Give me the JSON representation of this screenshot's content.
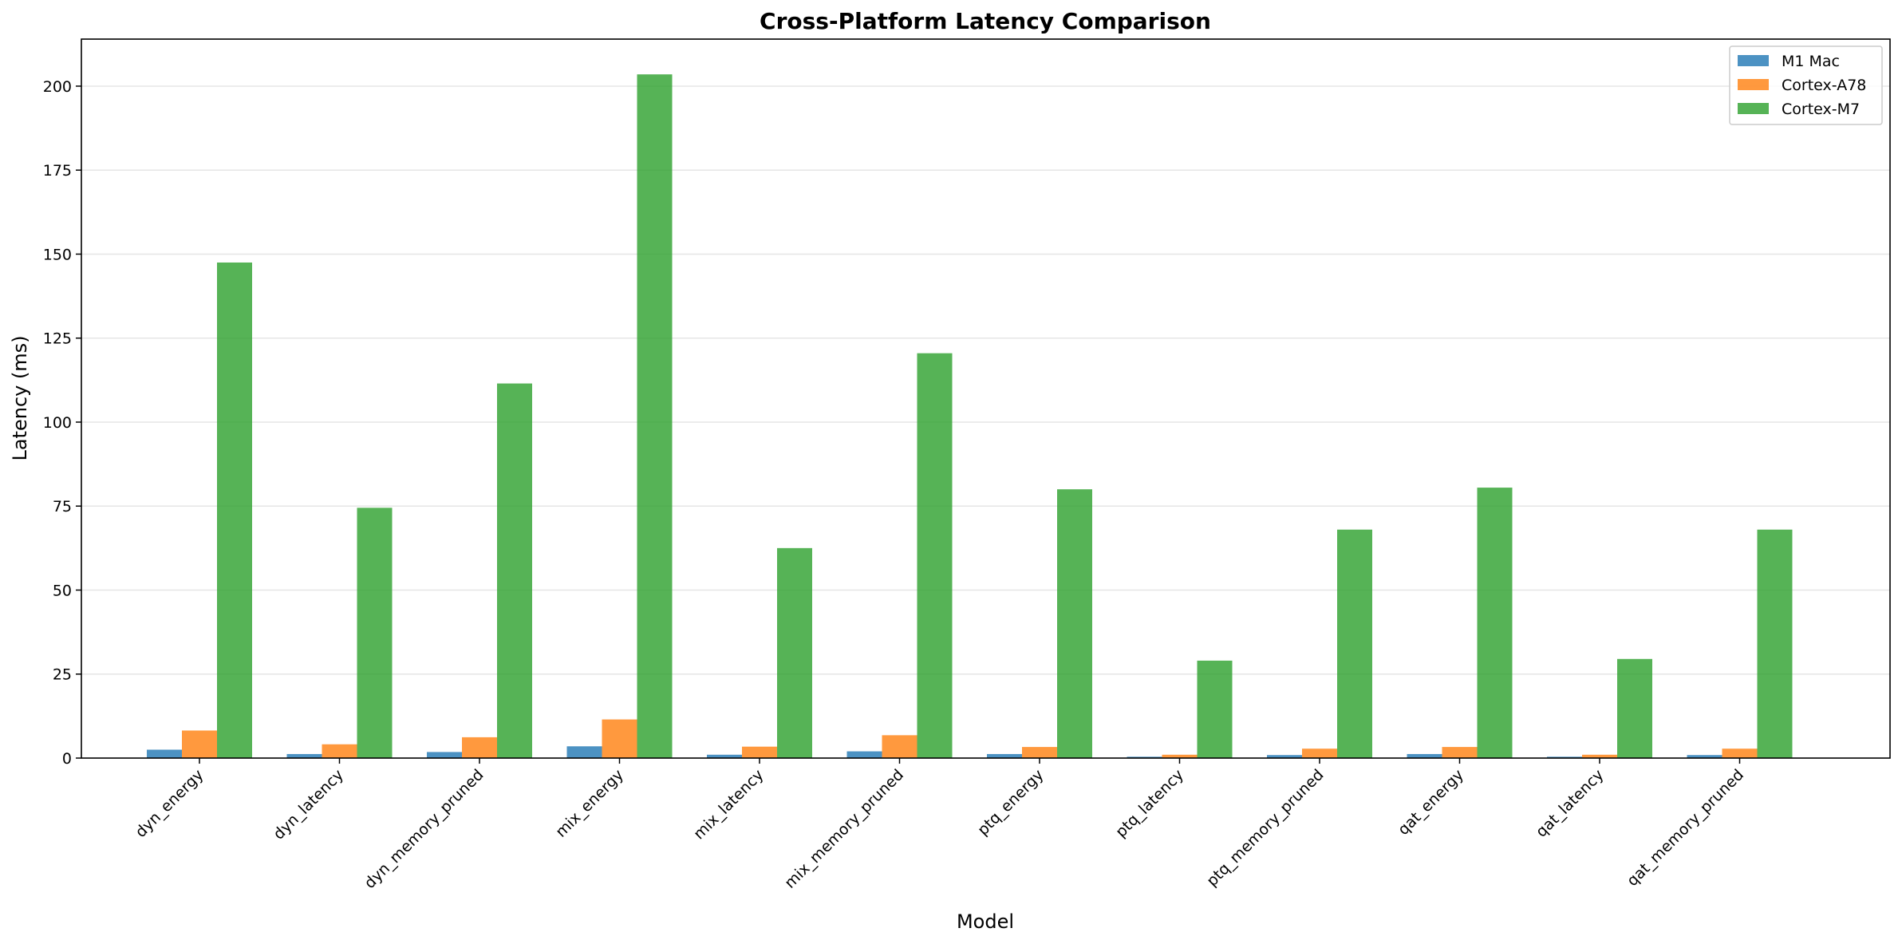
{
  "chart_data": {
    "type": "bar",
    "title": "Cross-Platform Latency Comparison",
    "xlabel": "Model",
    "ylabel": "Latency (ms)",
    "ylim": [
      0,
      214
    ],
    "yticks": [
      0,
      25,
      50,
      75,
      100,
      125,
      150,
      175,
      200
    ],
    "grid": "horizontal",
    "legend_position": "top-right",
    "categories": [
      "dyn_energy",
      "dyn_latency",
      "dyn_memory_pruned",
      "mix_energy",
      "mix_latency",
      "mix_memory_pruned",
      "ptq_energy",
      "ptq_latency",
      "ptq_memory_pruned",
      "qat_energy",
      "qat_latency",
      "qat_memory_pruned"
    ],
    "series": [
      {
        "name": "M1 Mac",
        "color": "#1f77b4",
        "values": [
          2.5,
          1.2,
          1.8,
          3.5,
          1.0,
          2.0,
          1.2,
          0.4,
          0.9,
          1.2,
          0.4,
          0.9
        ]
      },
      {
        "name": "Cortex-A78",
        "color": "#ff7f0e",
        "values": [
          8.2,
          4.1,
          6.2,
          11.5,
          3.4,
          6.8,
          3.3,
          1.0,
          2.8,
          3.3,
          1.0,
          2.8
        ]
      },
      {
        "name": "Cortex-M7",
        "color": "#2ca02c",
        "values": [
          147.5,
          74.5,
          111.5,
          203.5,
          62.5,
          120.5,
          80.0,
          29.0,
          68.0,
          80.5,
          29.5,
          68.0
        ]
      }
    ]
  }
}
